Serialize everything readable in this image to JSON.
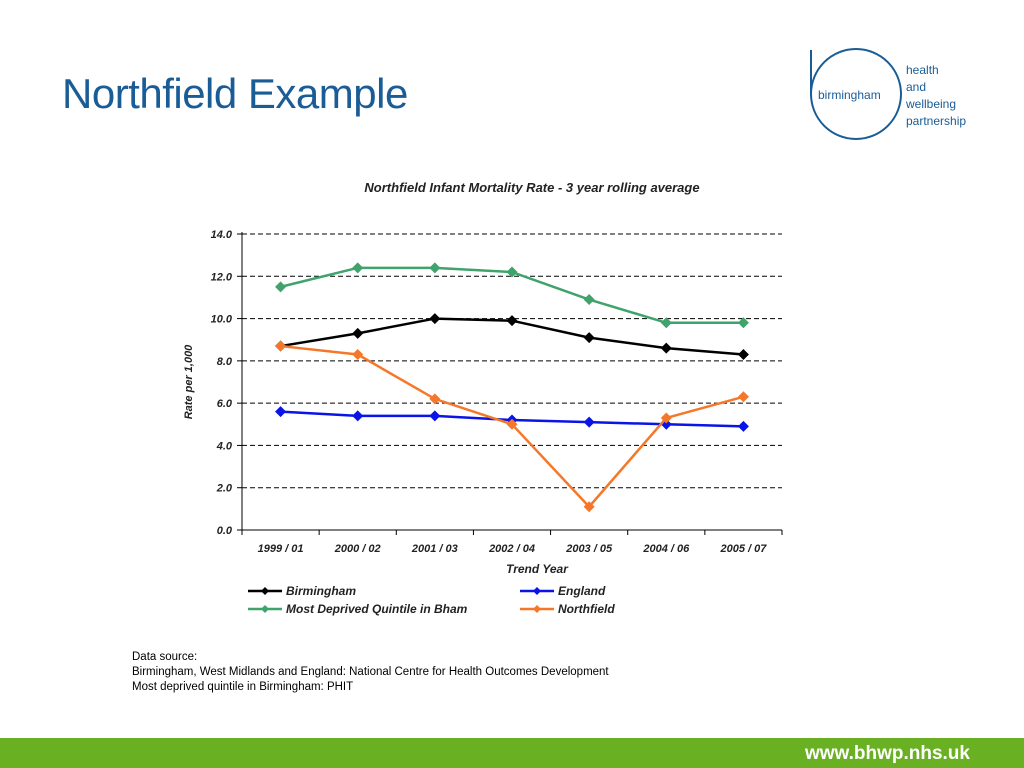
{
  "slide": {
    "title": "Northfield Example"
  },
  "logo": {
    "center_word": "birmingham",
    "lines": [
      "health",
      "and",
      "wellbeing",
      "partnership"
    ]
  },
  "footer": {
    "url": "www.bhwp.nhs.uk",
    "bar_color": "#6ab023"
  },
  "source": {
    "lines": [
      "Data source:",
      "Birmingham, West Midlands and England: National Centre for Health Outcomes Development",
      "Most deprived quintile in Birmingham:  PHIT"
    ]
  },
  "chart_data": {
    "type": "line",
    "title": "Northfield Infant Mortality Rate - 3 year rolling average",
    "xlabel": "Trend Year",
    "ylabel": "Rate per 1,000",
    "categories": [
      "1999 / 01",
      "2000 / 02",
      "2001 / 03",
      "2002 / 04",
      "2003 / 05",
      "2004 / 06",
      "2005 / 07"
    ],
    "ylim": [
      0,
      14
    ],
    "yticks": [
      "0.0",
      "2.0",
      "4.0",
      "6.0",
      "8.0",
      "10.0",
      "12.0",
      "14.0"
    ],
    "grid": "dashed horizontal",
    "legend_position": "bottom",
    "series": [
      {
        "name": "Birmingham",
        "color": "#000000",
        "values": [
          8.7,
          9.3,
          10.0,
          9.9,
          9.1,
          8.6,
          8.3
        ]
      },
      {
        "name": "England",
        "color": "#0a14e6",
        "values": [
          5.6,
          5.4,
          5.4,
          5.2,
          5.1,
          5.0,
          4.9
        ]
      },
      {
        "name": "Most Deprived Quintile in Bham",
        "color": "#3fa36b",
        "values": [
          11.5,
          12.4,
          12.4,
          12.2,
          10.9,
          9.8,
          9.8
        ]
      },
      {
        "name": "Northfield",
        "color": "#f5782a",
        "values": [
          8.7,
          8.3,
          6.2,
          5.0,
          1.1,
          5.3,
          6.3
        ]
      }
    ]
  }
}
